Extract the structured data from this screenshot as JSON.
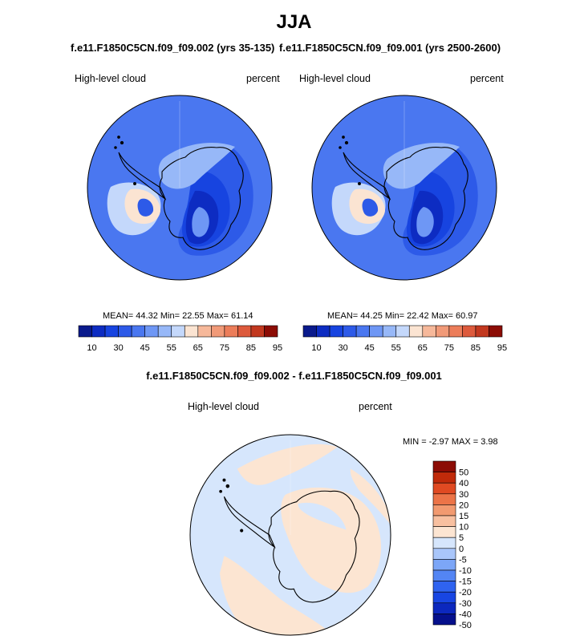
{
  "figure": {
    "title": "JJA",
    "diff_title": "f.e11.F1850C5CN.f09_f09.002 - f.e11.F1850C5CN.f09_f09.001"
  },
  "palettes": {
    "mean_levels": [
      "#0a1a8c",
      "#0d2cc2",
      "#1744e0",
      "#2d5ae8",
      "#4a77f0",
      "#6e97f5",
      "#97b8f8",
      "#c4d8fb",
      "#fbe4d2",
      "#f6b89a",
      "#f19a78",
      "#ec7d5a",
      "#dd5a3c",
      "#c2381f",
      "#8c0c05"
    ],
    "diff_levels": [
      "#05108c",
      "#0c28be",
      "#1846e3",
      "#2f63f0",
      "#5385f4",
      "#7ca6f7",
      "#a9c6fa",
      "#d6e6fc",
      "#fce5d2",
      "#f8c0a0",
      "#f29a70",
      "#ec7448",
      "#e04a22",
      "#c02a0a",
      "#8c0c05"
    ],
    "continent_fill": "#ffffff",
    "coast_color": "#000000"
  },
  "chart_data": [
    {
      "type": "heatmap",
      "projection": "polar-stereographic-south",
      "title": "f.e11.F1850C5CN.f09_f09.002 (yrs 35-135)",
      "left_label": "High-level cloud",
      "right_label": "percent",
      "stats": {
        "mean_label": "MEAN=",
        "mean": "44.32",
        "min_label": "Min=",
        "min": "22.55",
        "max_label": "Max=",
        "max": "61.14"
      },
      "colorbar": {
        "orientation": "horizontal",
        "levels": [
          5,
          10,
          20,
          30,
          40,
          45,
          50,
          55,
          60,
          65,
          70,
          75,
          80,
          85,
          90,
          95
        ],
        "tick_labels": [
          "10",
          "30",
          "45",
          "55",
          "65",
          "75",
          "85",
          "95"
        ]
      },
      "field": {
        "background": "#4a77f0",
        "regions": [
          {
            "value": 30,
            "color": "#2d5ae8",
            "desc": "east antarctic plateau"
          },
          {
            "value": 20,
            "color": "#1744e0",
            "desc": "core dark zone"
          },
          {
            "value": 10,
            "color": "#0d2cc2",
            "desc": "deepest core"
          },
          {
            "value": 50,
            "color": "#6e97f5",
            "desc": "west antarctica"
          },
          {
            "value": 55,
            "color": "#97b8f8",
            "desc": "weddell sea arc"
          },
          {
            "value": 60,
            "color": "#c4d8fb",
            "desc": "antarctic peninsula"
          },
          {
            "value": 65,
            "color": "#fbe4d2",
            "desc": "peninsula maximum"
          },
          {
            "value": 40,
            "color": "#2d5ae8",
            "desc": "southern indian ocean"
          }
        ]
      }
    },
    {
      "type": "heatmap",
      "projection": "polar-stereographic-south",
      "title": "f.e11.F1850C5CN.f09_f09.001 (yrs 2500-2600)",
      "left_label": "High-level cloud",
      "right_label": "percent",
      "stats": {
        "mean_label": "MEAN=",
        "mean": "44.25",
        "min_label": "Min=",
        "min": "22.42",
        "max_label": "Max=",
        "max": "60.97"
      },
      "colorbar": {
        "orientation": "horizontal",
        "levels": [
          5,
          10,
          20,
          30,
          40,
          45,
          50,
          55,
          60,
          65,
          70,
          75,
          80,
          85,
          90,
          95
        ],
        "tick_labels": [
          "10",
          "30",
          "45",
          "55",
          "65",
          "75",
          "85",
          "95"
        ]
      },
      "field": {
        "background": "#4a77f0",
        "regions": [
          {
            "value": 30,
            "color": "#2d5ae8",
            "desc": "east antarctic plateau"
          },
          {
            "value": 20,
            "color": "#1744e0",
            "desc": "core dark zone"
          },
          {
            "value": 10,
            "color": "#0d2cc2",
            "desc": "deepest core"
          },
          {
            "value": 50,
            "color": "#6e97f5",
            "desc": "west antarctica"
          },
          {
            "value": 55,
            "color": "#97b8f8",
            "desc": "weddell sea arc"
          },
          {
            "value": 60,
            "color": "#c4d8fb",
            "desc": "antarctic peninsula"
          },
          {
            "value": 65,
            "color": "#fbe4d2",
            "desc": "peninsula maximum"
          },
          {
            "value": 40,
            "color": "#2d5ae8",
            "desc": "southern indian ocean"
          }
        ]
      }
    },
    {
      "type": "heatmap",
      "projection": "polar-stereographic-south",
      "title": "f.e11.F1850C5CN.f09_f09.002 - f.e11.F1850C5CN.f09_f09.001",
      "left_label": "High-level cloud",
      "right_label": "percent",
      "stats": {
        "min_label": "MIN =",
        "min": "-2.97",
        "max_label": "MAX =",
        "max": "3.98"
      },
      "colorbar": {
        "orientation": "vertical",
        "levels": [
          -60,
          -50,
          -40,
          -30,
          -20,
          -15,
          -10,
          -5,
          0,
          5,
          10,
          15,
          20,
          30,
          40,
          50,
          60
        ],
        "tick_labels": [
          "50",
          "40",
          "30",
          "20",
          "15",
          "10",
          "5",
          "0",
          "-5",
          "-10",
          "-15",
          "-20",
          "-30",
          "-40",
          "-50"
        ]
      },
      "field": {
        "background": "#d6e6fc",
        "regions": [
          {
            "value": 2.5,
            "color": "#fce5d2",
            "desc": "east antarctica positive"
          },
          {
            "value": 2.5,
            "color": "#fce5d2",
            "desc": "pacific sector positive"
          },
          {
            "value": 2.5,
            "color": "#fce5d2",
            "desc": "atlantic sector positive"
          },
          {
            "value": 2.5,
            "color": "#fce5d2",
            "desc": "indian sector positive"
          },
          {
            "value": -2.5,
            "color": "#d6e6fc",
            "desc": "peninsula / ross negative"
          }
        ]
      }
    }
  ]
}
